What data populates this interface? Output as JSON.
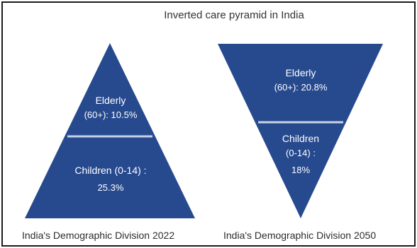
{
  "title": "Inverted care pyramid in India",
  "colors": {
    "fill": "#274a8f",
    "divider": "#c9d3e6",
    "label": "#ffffff",
    "frame": "#1b1b1b"
  },
  "pyramid_2022": {
    "top_line1": "Elderly",
    "top_line2": "(60+): 10.5%",
    "bottom_line1": "Children (0-14) :",
    "bottom_line2": "25.3%",
    "caption": "India's Demographic Division 2022"
  },
  "pyramid_2050": {
    "top_line1": "Elderly",
    "top_line2": "(60+): 20.8%",
    "bottom_line1": "Children",
    "bottom_line2": "(0-14) :",
    "bottom_line3": "18%",
    "caption": "India's Demographic Division 2050"
  }
}
